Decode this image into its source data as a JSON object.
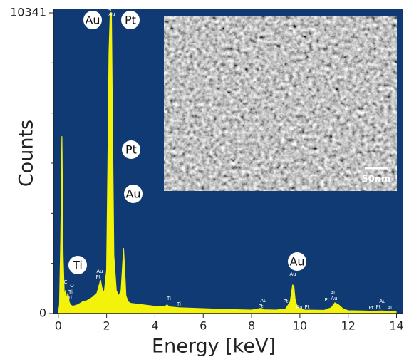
{
  "chart_data": {
    "type": "area",
    "x_label": "Energy [keV]",
    "y_label": "Counts",
    "xlim": [
      -0.2,
      14.25
    ],
    "ylim": [
      0,
      10341
    ],
    "xticks": [
      0,
      2,
      4,
      6,
      8,
      10,
      12,
      14
    ],
    "yticks": [
      0,
      10341
    ],
    "yminorticks": [
      1723.5,
      3447,
      5170.5,
      6894,
      8617.5
    ],
    "background": "#0f3a73",
    "series": [
      {
        "color": "#f2f20a",
        "x": [
          0,
          0.05,
          0.1,
          0.15,
          0.2,
          0.25,
          0.3,
          0.35,
          0.4,
          0.45,
          0.5,
          0.6,
          0.8,
          1.0,
          1.2,
          1.4,
          1.6,
          1.7,
          1.75,
          1.8,
          1.9,
          2.0,
          2.05,
          2.1,
          2.15,
          2.2,
          2.25,
          2.3,
          2.4,
          2.5,
          2.6,
          2.65,
          2.7,
          2.75,
          2.8,
          2.9,
          3.0,
          3.5,
          4.0,
          4.4,
          4.5,
          4.6,
          5.0,
          6.0,
          7.0,
          8.0,
          8.4,
          8.5,
          9.0,
          9.4,
          9.6,
          9.7,
          9.75,
          9.8,
          9.9,
          10.2,
          11.0,
          11.3,
          11.45,
          11.6,
          11.8,
          12.0,
          13.0,
          13.4,
          14.0
        ],
        "values": [
          0,
          300,
          2500,
          6100,
          2000,
          600,
          800,
          500,
          700,
          400,
          300,
          250,
          300,
          400,
          450,
          550,
          700,
          1000,
          1150,
          900,
          700,
          1500,
          5000,
          9000,
          10341,
          10341,
          6000,
          2000,
          800,
          600,
          800,
          1500,
          2250,
          1500,
          600,
          400,
          350,
          300,
          250,
          230,
          300,
          230,
          200,
          170,
          140,
          120,
          180,
          130,
          120,
          150,
          400,
          980,
          950,
          500,
          200,
          120,
          110,
          200,
          370,
          300,
          150,
          100,
          80,
          90,
          60
        ]
      }
    ],
    "peak_labels": [
      "Au",
      "Pt",
      "Pt",
      "Au",
      "Ti",
      "Au"
    ],
    "minor_labels": [
      "C",
      "O",
      "Ti",
      "Ti",
      "Au",
      "Pt",
      "Pt",
      "Au",
      "Ti",
      "Ti",
      "Au",
      "Pt",
      "Au",
      "Pt",
      "Au",
      "Pt",
      "Au",
      "Au",
      "Pt",
      "Au",
      "Pt",
      "Pt",
      "Au"
    ],
    "inset_scale_label": "50nm"
  }
}
